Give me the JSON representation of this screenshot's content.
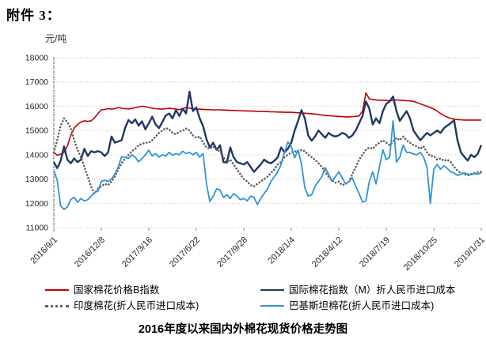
{
  "heading": {
    "attachment": "附件 3："
  },
  "chart": {
    "unit_label": "元/吨",
    "title": "2016年度以来国内外棉花现货价格走势图"
  },
  "colors": {
    "china_b": "#C00000",
    "intl_m": "#1F3864",
    "india": "#606060",
    "pakistan": "#2E94D6",
    "gridline": "#C9C9C9",
    "axis": "#595959",
    "tick_text": "#262626"
  },
  "chart_data": {
    "type": "line",
    "title": "2016年度以来国内外棉花现货价格走势图",
    "y_unit": "元/吨",
    "ylim": [
      11000,
      18000
    ],
    "y_tick_step": 1000,
    "y_tick_labels": [
      "11000",
      "12000",
      "13000",
      "14000",
      "15000",
      "16000",
      "17000",
      "18000"
    ],
    "grid": "horizontal-dotted",
    "legend_position": "bottom",
    "x_frequency": "weekly",
    "n_points": 127,
    "x_tick_indices": [
      0,
      14,
      28,
      42,
      56,
      70,
      84,
      98,
      112,
      126
    ],
    "x_tick_labels": [
      "2016/9/1",
      "2016/12/8",
      "2017/3/16",
      "2017/6/22",
      "2017/9/28",
      "2018/1/4",
      "2018/4/12",
      "2018/7/19",
      "2018/10/25",
      "2019/1/31"
    ],
    "series": [
      {
        "key": "china-b-index",
        "name": "国家棉花价格B指数",
        "color": "#C00000",
        "style": "solid",
        "width": 1.6,
        "values": [
          14100,
          13980,
          14020,
          14100,
          14350,
          14800,
          15100,
          15250,
          15350,
          15400,
          15380,
          15400,
          15520,
          15700,
          15850,
          15870,
          15900,
          15880,
          15900,
          15950,
          15920,
          15900,
          15890,
          15910,
          15950,
          15970,
          16000,
          15980,
          15950,
          15920,
          15900,
          15890,
          15880,
          15900,
          15920,
          15900,
          15880,
          15860,
          15900,
          15950,
          15920,
          15900,
          15880,
          15880,
          15870,
          15860,
          15860,
          15850,
          15850,
          15850,
          15840,
          15840,
          15830,
          15830,
          15820,
          15820,
          15810,
          15810,
          15800,
          15800,
          15790,
          15790,
          15780,
          15780,
          15770,
          15770,
          15760,
          15760,
          15750,
          15750,
          15750,
          15740,
          15730,
          15720,
          15710,
          15700,
          15690,
          15680,
          15660,
          15640,
          15620,
          15610,
          15600,
          15590,
          15580,
          15570,
          15560,
          15560,
          15570,
          15580,
          15600,
          15800,
          16550,
          16300,
          16280,
          16260,
          16250,
          16250,
          16240,
          16230,
          16250,
          16260,
          16250,
          16240,
          16230,
          16220,
          16200,
          16150,
          16100,
          16050,
          16000,
          15950,
          15880,
          15800,
          15700,
          15620,
          15550,
          15500,
          15470,
          15450,
          15440,
          15430,
          15430,
          15430,
          15430,
          15430,
          15430
        ]
      },
      {
        "key": "intl-m-index",
        "name": "国际棉花指数（M）折人民币进口成本",
        "color": "#1F3864",
        "style": "solid",
        "width": 2.4,
        "values": [
          13700,
          13450,
          13750,
          14350,
          13800,
          13650,
          13850,
          13700,
          13800,
          14250,
          13950,
          14150,
          14100,
          14150,
          14100,
          13950,
          14100,
          14750,
          14500,
          14550,
          14600,
          15100,
          15430,
          15300,
          15460,
          15200,
          15380,
          15050,
          15300,
          15570,
          15250,
          15100,
          15350,
          15620,
          15700,
          15500,
          15840,
          15600,
          15900,
          15700,
          16600,
          15800,
          15950,
          15500,
          15180,
          14640,
          14300,
          14500,
          14200,
          14400,
          13700,
          13680,
          14300,
          13900,
          13700,
          13650,
          13600,
          13700,
          13500,
          13300,
          13450,
          13600,
          13800,
          13700,
          13650,
          13750,
          13900,
          14300,
          14100,
          14250,
          14500,
          15000,
          15400,
          15840,
          15500,
          14800,
          14580,
          14750,
          15000,
          14850,
          14700,
          14900,
          14800,
          14750,
          14800,
          14900,
          14850,
          14700,
          14800,
          15000,
          15300,
          15600,
          16200,
          15900,
          15250,
          15500,
          15300,
          15800,
          16100,
          16200,
          16400,
          15800,
          15400,
          15600,
          15800,
          15500,
          15000,
          14800,
          14600,
          14750,
          14900,
          14800,
          14900,
          15000,
          14900,
          15100,
          15200,
          15300,
          15420,
          14600,
          14100,
          13920,
          13760,
          14000,
          13900,
          14050,
          14400
        ]
      },
      {
        "key": "india-cotton",
        "name": "印度棉花(折人民币进口成本)",
        "color": "#606060",
        "style": "dotted",
        "width": 2.6,
        "values": [
          14100,
          14600,
          15200,
          15500,
          15350,
          15100,
          14600,
          14200,
          13900,
          13500,
          13100,
          12700,
          12400,
          12600,
          12700,
          12800,
          12750,
          12900,
          13100,
          13400,
          13650,
          13850,
          14000,
          14150,
          14250,
          14400,
          14450,
          14500,
          14500,
          14600,
          14750,
          14900,
          15000,
          15100,
          15050,
          14900,
          14850,
          14950,
          15000,
          15080,
          15000,
          14800,
          14700,
          14750,
          14500,
          14300,
          14250,
          14350,
          14200,
          14150,
          13900,
          13700,
          13800,
          13600,
          13400,
          13200,
          13000,
          12900,
          12750,
          12700,
          12800,
          12900,
          13000,
          13100,
          13250,
          13400,
          13600,
          13700,
          13900,
          14000,
          14100,
          14150,
          14100,
          14200,
          14150,
          14000,
          13900,
          13800,
          13650,
          13500,
          13300,
          13100,
          12950,
          12850,
          12900,
          12750,
          12800,
          12900,
          13200,
          13500,
          13800,
          14000,
          14200,
          14300,
          14250,
          14400,
          14500,
          14600,
          14500,
          14400,
          14550,
          14700,
          14600,
          14750,
          14600,
          14500,
          14400,
          14350,
          14250,
          14350,
          14100,
          13950,
          13950,
          13800,
          13850,
          13750,
          13800,
          13700,
          13500,
          13350,
          13250,
          13200,
          13150,
          13200,
          13250,
          13280,
          13300
        ]
      },
      {
        "key": "pakistan-cotton",
        "name": "巴基斯坦棉花(折人民币进口成本)",
        "color": "#2E94D6",
        "style": "solid",
        "width": 1.8,
        "values": [
          13350,
          12950,
          11900,
          11750,
          11850,
          12150,
          12250,
          12050,
          12200,
          12100,
          12150,
          12300,
          12450,
          12500,
          12900,
          12950,
          12900,
          13000,
          13200,
          13500,
          13920,
          13900,
          13850,
          14000,
          13900,
          13710,
          13850,
          14000,
          14190,
          13950,
          14050,
          13900,
          14000,
          13950,
          14100,
          13980,
          14050,
          14000,
          14150,
          14050,
          14100,
          14000,
          14100,
          13900,
          14050,
          12800,
          12070,
          12300,
          12600,
          12550,
          12250,
          12350,
          12200,
          12400,
          12300,
          12150,
          12200,
          12100,
          12300,
          12250,
          11950,
          12200,
          12400,
          12600,
          12900,
          13100,
          13300,
          13600,
          14100,
          14530,
          14350,
          13870,
          14200,
          13600,
          12640,
          12300,
          12350,
          12700,
          12900,
          13100,
          13470,
          13200,
          12900,
          13100,
          13300,
          13050,
          12800,
          12900,
          13050,
          12700,
          12400,
          12050,
          12100,
          12900,
          13300,
          12800,
          13500,
          14200,
          13800,
          13900,
          15400,
          13700,
          13900,
          14400,
          14100,
          14100,
          14030,
          14000,
          14100,
          13900,
          13500,
          12000,
          13400,
          13600,
          13400,
          13550,
          13440,
          13300,
          13250,
          13150,
          13200,
          13250,
          13200,
          13180,
          13220,
          13200,
          13250
        ]
      }
    ]
  }
}
